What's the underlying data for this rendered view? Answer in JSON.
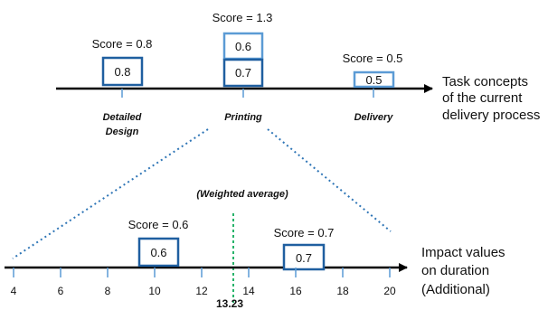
{
  "colors": {
    "dark_box": "#1f5fa0",
    "light_box": "#5b9bd5",
    "dotted_link": "#2e75b6",
    "average_line": "#27b36a",
    "axis": "#000000"
  },
  "top": {
    "tasks": [
      {
        "label_lines": [
          "Detailed",
          "Design"
        ],
        "score_text": "Score = 0.8",
        "boxes": [
          "0.8"
        ]
      },
      {
        "label_lines": [
          "Printing"
        ],
        "score_text": "Score = 1.3",
        "boxes": [
          "0.6",
          "0.7"
        ]
      },
      {
        "label_lines": [
          "Delivery"
        ],
        "score_text": "Score = 0.5",
        "boxes": [
          "0.5"
        ]
      }
    ],
    "side_label_lines": [
      "Task concepts",
      "of the current",
      "delivery process"
    ]
  },
  "bottom": {
    "weighted_average_label": "(Weighted average)",
    "average_value": "13.23",
    "axis_ticks": [
      "4",
      "6",
      "8",
      "10",
      "12",
      "14",
      "16",
      "18",
      "20"
    ],
    "impacts": [
      {
        "score_text": "Score = 0.6",
        "box": "0.6"
      },
      {
        "score_text": "Score = 0.7",
        "box": "0.7"
      }
    ],
    "side_label_lines": [
      "Impact values",
      "on duration",
      "(Additional)"
    ]
  }
}
